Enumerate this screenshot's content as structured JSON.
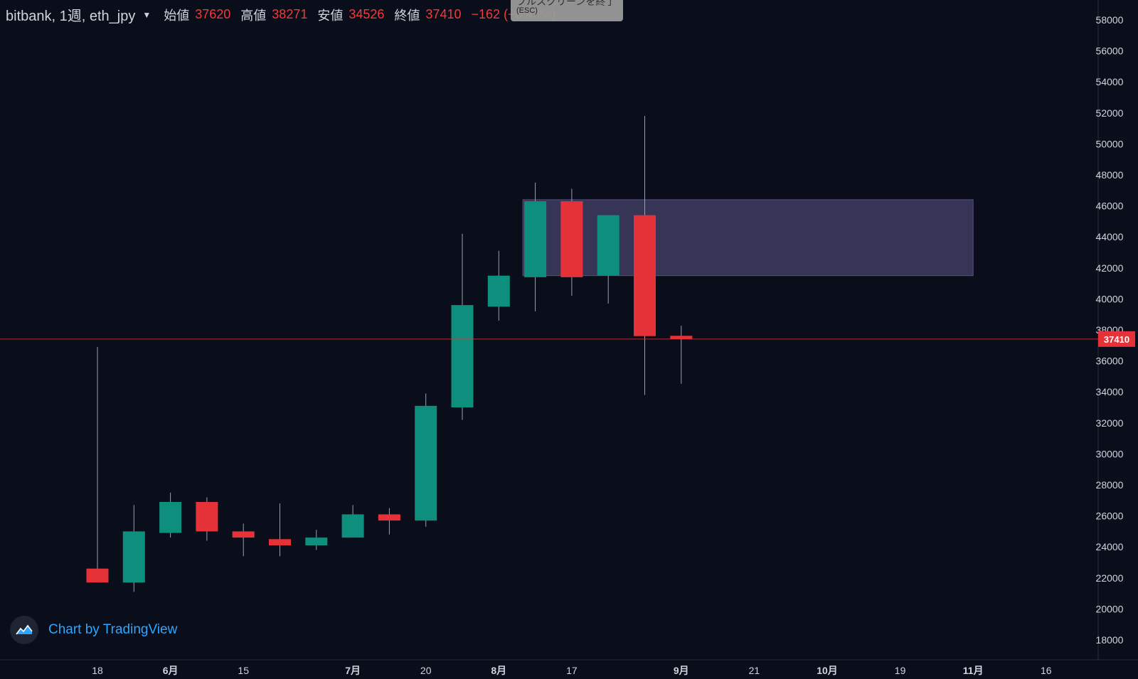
{
  "legend": {
    "symbol": "bitbank, 1週, eth_jpy",
    "open_label": "始値",
    "open_value": "37620",
    "high_label": "高値",
    "high_value": "38271",
    "low_label": "安値",
    "low_value": "34526",
    "close_label": "終値",
    "close_value": "37410",
    "change": "−162 (−0.43%)"
  },
  "fullscreen_tooltip": {
    "line1": "フルスクリーンを終了",
    "line2": "(ESC)"
  },
  "watermark": {
    "text": "Chart by TradingView"
  },
  "colors": {
    "background": "#0a0e1a",
    "up": "#26a69a",
    "up_body": "#0e8f7e",
    "down": "#e53238",
    "wick": "#9aa0ad",
    "zone_fill": "#3c3a5c",
    "zone_border": "#5a4c82",
    "price_line": "#e53238",
    "axis_text": "#d1d4dc"
  },
  "chart_data": {
    "type": "candlestick",
    "title": "bitbank, 1週, eth_jpy",
    "ylim": [
      17000,
      59000
    ],
    "y_ticks": [
      18000,
      20000,
      22000,
      24000,
      26000,
      28000,
      30000,
      32000,
      34000,
      36000,
      38000,
      40000,
      42000,
      44000,
      46000,
      48000,
      50000,
      52000,
      54000,
      56000,
      58000
    ],
    "x_ticks": [
      {
        "label": "18",
        "bar": 0,
        "bold": false
      },
      {
        "label": "6月",
        "bar": 2,
        "bold": true
      },
      {
        "label": "15",
        "bar": 4,
        "bold": false
      },
      {
        "label": "7月",
        "bar": 7,
        "bold": true
      },
      {
        "label": "20",
        "bar": 9,
        "bold": false
      },
      {
        "label": "8月",
        "bar": 11,
        "bold": true
      },
      {
        "label": "17",
        "bar": 13,
        "bold": false
      },
      {
        "label": "9月",
        "bar": 16,
        "bold": true
      },
      {
        "label": "21",
        "bar": 18,
        "bold": false
      },
      {
        "label": "10月",
        "bar": 20,
        "bold": true
      },
      {
        "label": "19",
        "bar": 22,
        "bold": false
      },
      {
        "label": "11月",
        "bar": 24,
        "bold": true
      },
      {
        "label": "16",
        "bar": 26,
        "bold": false
      }
    ],
    "candles": [
      {
        "o": 22600,
        "h": 36900,
        "l": 21700,
        "c": 21700
      },
      {
        "o": 21700,
        "h": 26700,
        "l": 21100,
        "c": 25000
      },
      {
        "o": 24900,
        "h": 27500,
        "l": 24600,
        "c": 26900
      },
      {
        "o": 26900,
        "h": 27200,
        "l": 24400,
        "c": 25000
      },
      {
        "o": 25000,
        "h": 25500,
        "l": 23400,
        "c": 24600
      },
      {
        "o": 24500,
        "h": 26800,
        "l": 23400,
        "c": 24100
      },
      {
        "o": 24100,
        "h": 25100,
        "l": 23800,
        "c": 24600
      },
      {
        "o": 24600,
        "h": 26700,
        "l": 24600,
        "c": 26100
      },
      {
        "o": 26100,
        "h": 26500,
        "l": 24800,
        "c": 25700
      },
      {
        "o": 25700,
        "h": 33900,
        "l": 25300,
        "c": 33100
      },
      {
        "o": 33000,
        "h": 44200,
        "l": 32200,
        "c": 39600
      },
      {
        "o": 39500,
        "h": 43100,
        "l": 38600,
        "c": 41500
      },
      {
        "o": 41400,
        "h": 47500,
        "l": 39200,
        "c": 46300
      },
      {
        "o": 46300,
        "h": 47100,
        "l": 40200,
        "c": 41400
      },
      {
        "o": 41500,
        "h": 45400,
        "l": 39700,
        "c": 45400
      },
      {
        "o": 45400,
        "h": 51800,
        "l": 33800,
        "c": 37600
      },
      {
        "o": 37620,
        "h": 38271,
        "l": 34526,
        "c": 37410
      }
    ],
    "zone": {
      "from_bar": 12,
      "to_bar": 24,
      "y_low": 41500,
      "y_high": 46400
    },
    "last_price": 37410,
    "last_price_label": "37410"
  }
}
